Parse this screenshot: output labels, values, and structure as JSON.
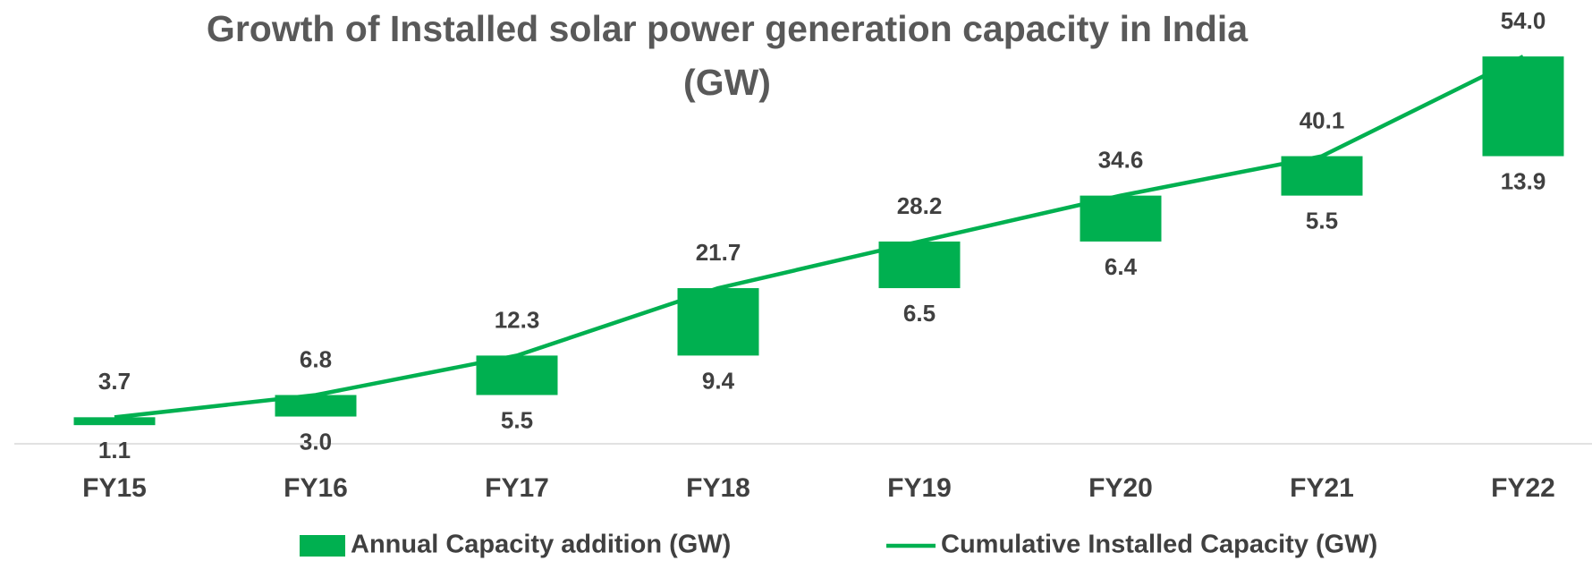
{
  "chart_data": {
    "type": "bar",
    "title": "Growth of Installed solar power generation capacity in India (GW)",
    "categories": [
      "FY15",
      "FY16",
      "FY17",
      "FY18",
      "FY19",
      "FY20",
      "FY21",
      "FY22"
    ],
    "series": [
      {
        "name": "Annual Capacity addition (GW)",
        "type": "bar",
        "color": "#00b050",
        "values": [
          1.1,
          3.0,
          5.5,
          9.4,
          6.5,
          6.4,
          5.5,
          13.9
        ],
        "value_labels": [
          "1.1",
          "3.0",
          "5.5",
          "9.4",
          "6.5",
          "6.4",
          "5.5",
          "13.9"
        ]
      },
      {
        "name": "Cumulative Installed Capacity (GW)",
        "type": "line",
        "color": "#00b050",
        "values": [
          3.7,
          6.8,
          12.3,
          21.7,
          28.2,
          34.6,
          40.1,
          54.0
        ],
        "value_labels": [
          "3.7",
          "6.8",
          "12.3",
          "21.7",
          "28.2",
          "34.6",
          "40.1",
          "54.0"
        ]
      }
    ],
    "ylim": [
      0,
      60
    ],
    "legend": "bottom"
  }
}
